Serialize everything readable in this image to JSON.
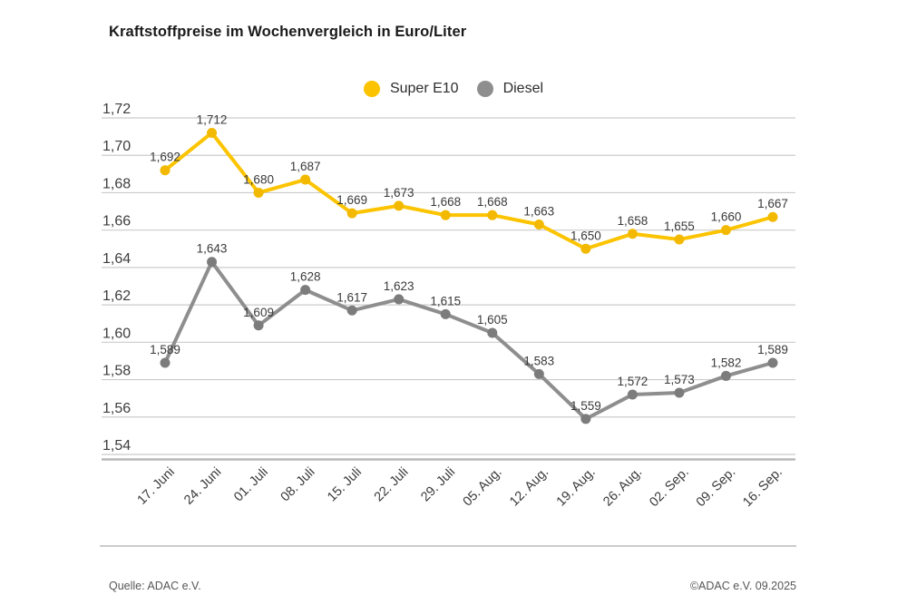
{
  "title": "Kraftstoffpreise im Wochenvergleich in Euro/Liter",
  "footer": {
    "source": "Quelle: ADAC e.V.",
    "copyright": "©ADAC e.V. 09.2025"
  },
  "colors": {
    "super_e10_line": "#FCC400",
    "super_e10_marker": "#F2B900",
    "diesel_line": "#8E8E8E",
    "diesel_marker": "#7C7C7C",
    "gridline": "#cbcbcb",
    "axis_line": "#b8b8b8"
  },
  "chart_data": {
    "type": "line",
    "title": "Kraftstoffpreise im Wochenvergleich in Euro/Liter",
    "xlabel": "",
    "ylabel": "Euro/Liter",
    "ylim": [
      1.54,
      1.72
    ],
    "ytick_step": 0.02,
    "grid": true,
    "legend_position": "top-center",
    "decimal_separator": ",",
    "categories": [
      "17. Juni",
      "24. Juni",
      "01. Juli",
      "08. Juli",
      "15. Juli",
      "22. Juli",
      "29. Juli",
      "05. Aug.",
      "12. Aug.",
      "19. Aug.",
      "26. Aug.",
      "02. Sep.",
      "09. Sep.",
      "16. Sep."
    ],
    "series": [
      {
        "name": "Super E10",
        "color": "#FCC400",
        "marker_color": "#F2B900",
        "values": [
          1.692,
          1.712,
          1.68,
          1.687,
          1.669,
          1.673,
          1.668,
          1.668,
          1.663,
          1.65,
          1.658,
          1.655,
          1.66,
          1.667
        ]
      },
      {
        "name": "Diesel",
        "color": "#8E8E8E",
        "marker_color": "#7C7C7C",
        "values": [
          1.589,
          1.643,
          1.609,
          1.628,
          1.617,
          1.623,
          1.615,
          1.605,
          1.583,
          1.559,
          1.572,
          1.573,
          1.582,
          1.589
        ]
      }
    ]
  }
}
